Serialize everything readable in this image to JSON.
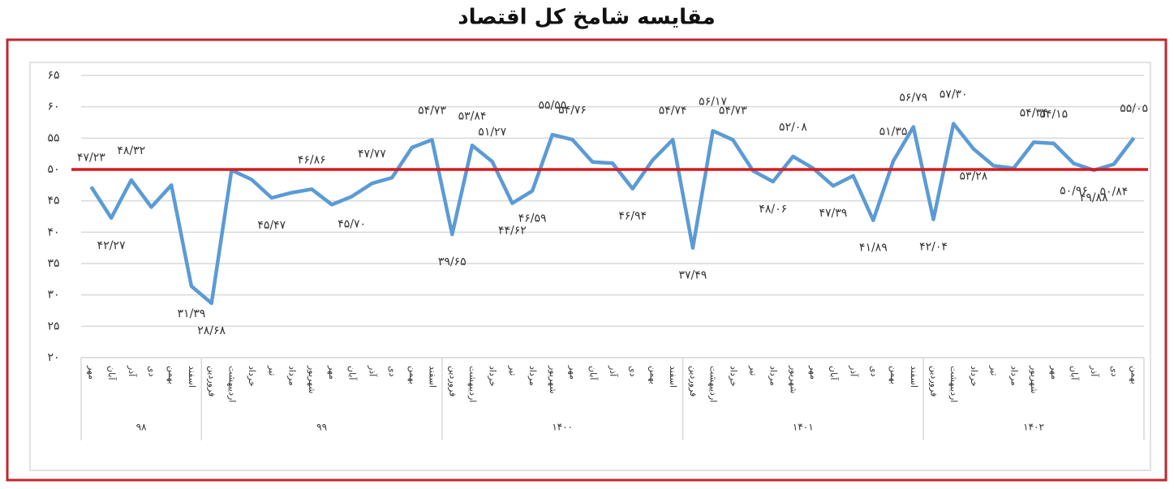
{
  "chart_data": {
    "type": "line",
    "title": "مقایسه شامخ کل اقتصاد",
    "groups": [
      {
        "label": "۹۸",
        "categories": [
          "مهر",
          "آبان",
          "آذر",
          "دی",
          "بهمن",
          "اسفند"
        ]
      },
      {
        "label": "۹۹",
        "categories": [
          "فروردین",
          "اردیبهشت",
          "خرداد",
          "تیر",
          "مرداد",
          "شهریور",
          "مهر",
          "آبان",
          "آذر",
          "دی",
          "بهمن",
          "اسفند"
        ]
      },
      {
        "label": "۱۴۰۰",
        "categories": [
          "فروردین",
          "اردیبهشت",
          "خرداد",
          "تیر",
          "مرداد",
          "شهریور",
          "مهر",
          "آبان",
          "آذر",
          "دی",
          "بهمن",
          "اسفند"
        ]
      },
      {
        "label": "۱۴۰۱",
        "categories": [
          "فروردین",
          "اردیبهشت",
          "خرداد",
          "تیر",
          "مرداد",
          "شهریور",
          "مهر",
          "آبان",
          "آذر",
          "دی",
          "بهمن",
          "اسفند"
        ]
      },
      {
        "label": "۱۴۰۲",
        "categories": [
          "فروردین",
          "اردیبهشت",
          "خرداد",
          "تیر",
          "مرداد",
          "شهریور",
          "مهر",
          "آبان",
          "آذر",
          "دی",
          "بهمن"
        ]
      }
    ],
    "color": "#5b9bd5",
    "values": [
      47.23,
      42.27,
      48.32,
      44,
      47.5,
      31.39,
      28.68,
      49.9,
      48.4,
      45.47,
      46.3,
      46.86,
      44.4,
      45.7,
      47.77,
      48.7,
      53.5,
      54.73,
      39.65,
      53.84,
      51.27,
      44.62,
      46.59,
      55.55,
      54.76,
      51.2,
      51,
      46.94,
      51.5,
      54.74,
      37.49,
      56.17,
      54.73,
      49.8,
      48.06,
      52.08,
      50.2,
      47.39,
      49,
      41.89,
      51.35,
      56.79,
      42.04,
      57.3,
      53.28,
      50.6,
      50.2,
      54.34,
      54.15,
      50.96,
      49.88,
      50.84,
      55.05
    ],
    "value_labels": [
      "۴۷/۲۳",
      "۴۲/۲۷",
      "۴۸/۳۲",
      null,
      null,
      "۳۱/۳۹",
      "۲۸/۶۸",
      null,
      null,
      "۴۵/۴۷",
      null,
      "۴۶/۸۶",
      null,
      "۴۵/۷۰",
      "۴۷/۷۷",
      null,
      null,
      "۵۴/۷۳",
      "۳۹/۶۵",
      "۵۳/۸۴",
      "۵۱/۲۷",
      "۴۴/۶۲",
      "۴۶/۵۹",
      "۵۵/۵۵",
      "۵۴/۷۶",
      null,
      null,
      "۴۶/۹۴",
      null,
      "۵۴/۷۴",
      "۳۷/۴۹",
      "۵۶/۱۷",
      "۵۴/۷۳",
      null,
      "۴۸/۰۶",
      "۵۲/۰۸",
      null,
      "۴۷/۳۹",
      null,
      "۴۱/۸۹",
      "۵۱/۳۵",
      "۵۶/۷۹",
      "۴۲/۰۴",
      "۵۷/۳۰",
      "۵۳/۲۸",
      null,
      null,
      "۵۴/۳۴",
      "۵۴/۱۵",
      "۵۰/۹۶",
      "۴۹/۸۸",
      "۵۰/۸۴",
      "۵۵/۰۵"
    ],
    "ylim": [
      20,
      65
    ],
    "yticks": [
      {
        "value": 20,
        "label": "۲۰"
      },
      {
        "value": 25,
        "label": "۲۵"
      },
      {
        "value": 30,
        "label": "۳۰"
      },
      {
        "value": 35,
        "label": "۳۵"
      },
      {
        "value": 40,
        "label": "۴۰"
      },
      {
        "value": 45,
        "label": "۴۵"
      },
      {
        "value": 50,
        "label": "۵۰"
      },
      {
        "value": 55,
        "label": "۵۵"
      },
      {
        "value": 60,
        "label": "۶۰"
      },
      {
        "value": 65,
        "label": "۶۵"
      }
    ],
    "grid": true,
    "reference_line": 50,
    "reference_color": "#d7191c"
  }
}
